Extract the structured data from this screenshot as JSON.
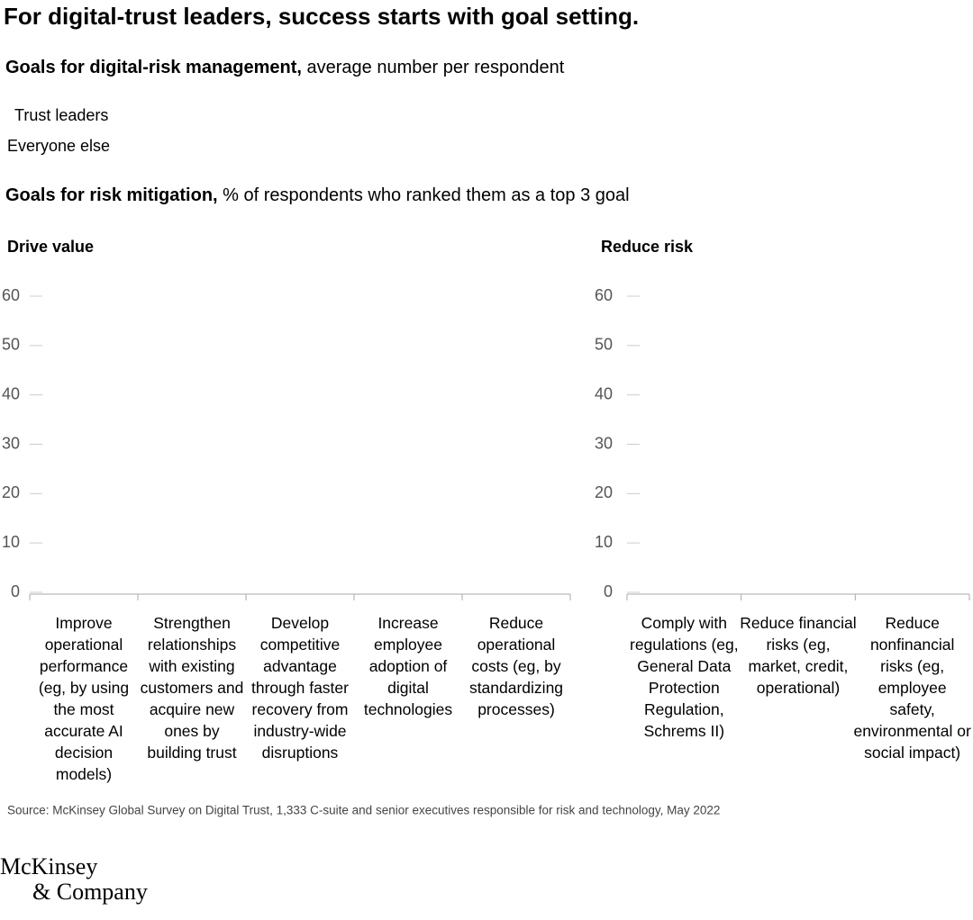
{
  "title": "For digital-trust leaders, success starts with goal setting.",
  "subtitle": {
    "bold": "Goals for digital-risk management,",
    "text": " average number per respondent"
  },
  "legend": [
    "Trust leaders",
    "Everyone else"
  ],
  "subtitle2": {
    "bold": "Goals for risk mitigation,",
    "text": " % of respondents who ranked them as a top 3 goal"
  },
  "chart_data": [
    {
      "type": "bar",
      "title": "Drive value",
      "categories": [
        "Improve operational performance (eg, by using the most accurate AI decision models)",
        "Strengthen relationships with existing customers and acquire new ones by building trust",
        "Develop competitive advantage through faster recovery from industry-wide disruptions",
        "Increase employee adoption of digital technologies",
        "Reduce operational costs (eg, by standardizing processes)"
      ],
      "ylim": [
        0,
        60
      ],
      "yticks": [
        0,
        10,
        20,
        30,
        40,
        50,
        60
      ]
    },
    {
      "type": "bar",
      "title": "Reduce risk",
      "categories": [
        "Comply with regulations (eg, General Data Protection Regulation, Schrems II)",
        "Reduce financial risks (eg, market, credit, operational)",
        "Reduce nonfinancial risks (eg, employee safety, environmental or social impact)"
      ],
      "ylim": [
        0,
        60
      ],
      "yticks": [
        0,
        10,
        20,
        30,
        40,
        50,
        60
      ]
    }
  ],
  "source": "Source: McKinsey Global Survey on Digital Trust, 1,333 C-suite and senior executives responsible for risk and technology, May 2022",
  "logo": [
    "McKinsey",
    "& Company"
  ]
}
